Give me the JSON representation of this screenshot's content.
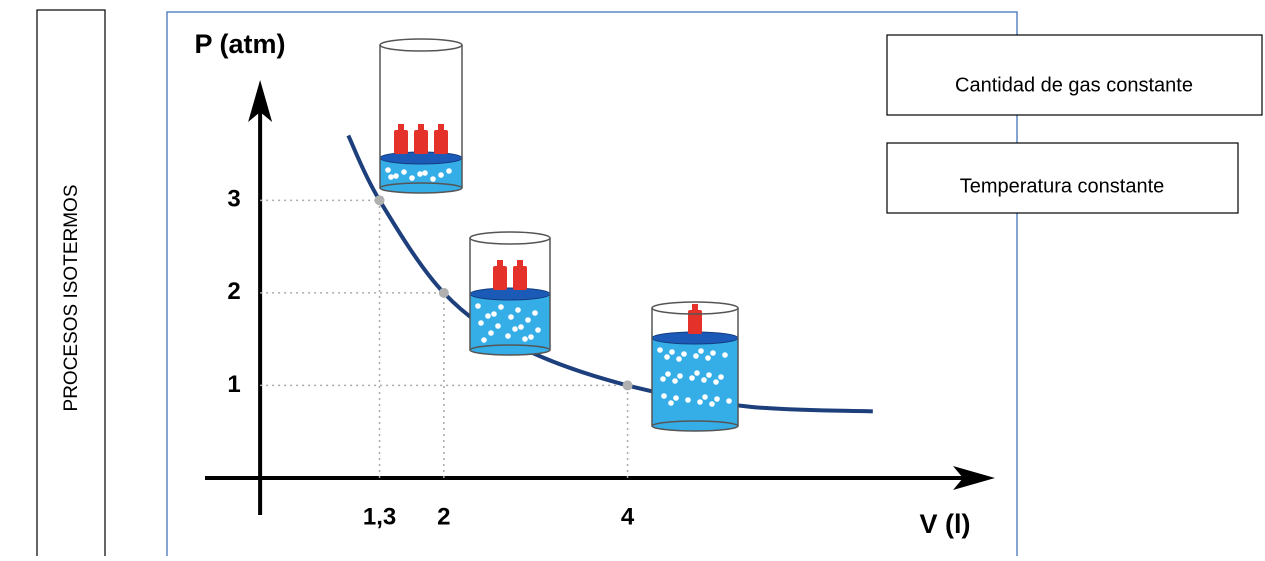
{
  "chart_data": {
    "type": "line",
    "side_label": "PROCESOS ISOTERMOS",
    "annotations": [
      "Cantidad de gas constante",
      "Temperatura constante"
    ],
    "ylabel": "P (atm)",
    "xlabel": "V (l)",
    "xlim": [
      -0.6,
      8
    ],
    "ylim": [
      -0.4,
      4.3
    ],
    "xticks": [
      {
        "value": 1.3,
        "label": "1,3"
      },
      2,
      4
    ],
    "yticks": [
      1,
      2,
      3
    ],
    "curve": {
      "color": "#1d3f7c",
      "x": [
        0.96,
        1.3,
        2,
        2.82,
        4,
        5.33,
        6.67
      ],
      "values": [
        3.7,
        3,
        2,
        1.42,
        1,
        0.77,
        0.72
      ]
    },
    "points": {
      "color": "#b0b0b0",
      "x": [
        1.3,
        2,
        4
      ],
      "values": [
        3,
        2,
        1
      ]
    }
  }
}
